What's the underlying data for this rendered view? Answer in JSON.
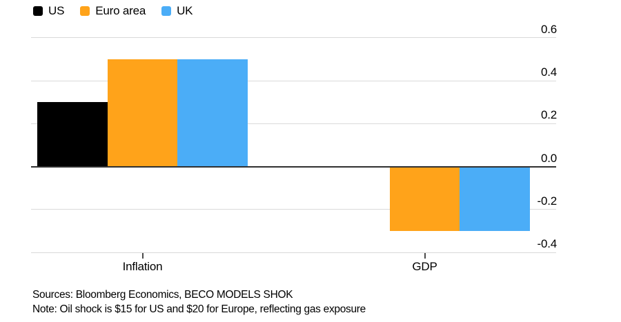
{
  "chart_data": {
    "type": "bar",
    "categories": [
      "Inflation",
      "GDP"
    ],
    "series": [
      {
        "name": "US",
        "color": "#000000",
        "values": [
          0.3,
          0
        ]
      },
      {
        "name": "Euro area",
        "color": "#FFA31A",
        "values": [
          0.5,
          -0.3
        ]
      },
      {
        "name": "UK",
        "color": "#4BADF7",
        "values": [
          0.5,
          -0.3
        ]
      }
    ],
    "y_ticks": [
      0.6,
      0.4,
      0.2,
      0,
      -0.2,
      -0.4
    ],
    "y_tick_labels": [
      "0.6",
      "0.4",
      "0.2",
      "0.0",
      "-0.2",
      "-0.4"
    ],
    "ylim": [
      -0.46,
      0.66
    ],
    "grid": true,
    "legend_position": "top-left",
    "title": "",
    "xlabel": "",
    "ylabel": ""
  },
  "footer": {
    "sources": "Sources: Bloomberg Economics, BECO MODELS SHOK",
    "note": "Note: Oil shock is $15 for US and $20 for Europe, reflecting gas exposure"
  },
  "colors": {
    "background": "#FFFFFF",
    "gridline": "#D9D9D9",
    "zero_axis": "#303030",
    "tick_mark": "#4A4A4A",
    "text": "#000000"
  }
}
